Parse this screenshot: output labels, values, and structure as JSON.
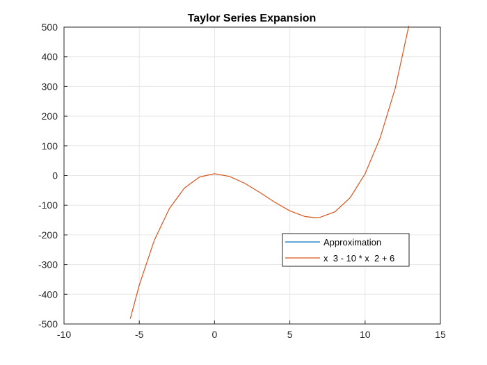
{
  "chart_data": {
    "type": "line",
    "title": "Taylor Series Expansion",
    "xlabel": "",
    "ylabel": "",
    "xlim": [
      -10,
      15
    ],
    "ylim": [
      -500,
      500
    ],
    "xticks": [
      -10,
      -5,
      0,
      5,
      10,
      15
    ],
    "yticks": [
      -500,
      -400,
      -300,
      -200,
      -100,
      0,
      100,
      200,
      300,
      400,
      500
    ],
    "grid": true,
    "legend_position": "center-right",
    "series": [
      {
        "name": "Approximation",
        "color": "#0072BD",
        "x": [],
        "y": []
      },
      {
        "name": "x  3 - 10 * x  2 + 6",
        "color": "#D95319",
        "x": [
          -5.6,
          -5.0,
          -4.0,
          -3.0,
          -2.0,
          -1.0,
          0.0,
          1.0,
          2.0,
          3.0,
          4.0,
          5.0,
          6.0,
          6.67,
          7.0,
          8.0,
          9.0,
          10.0,
          11.0,
          12.0,
          12.9
        ],
        "y": [
          -483,
          -369,
          -218,
          -111,
          -42,
          -5,
          6,
          -3,
          -26,
          -57,
          -90,
          -119,
          -138,
          -142,
          -141,
          -122,
          -75,
          6,
          127,
          294,
          504
        ]
      }
    ]
  }
}
